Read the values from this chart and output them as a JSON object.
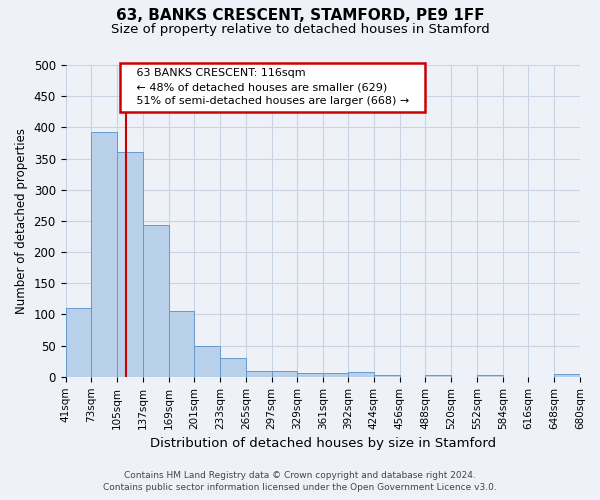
{
  "title_line1": "63, BANKS CRESCENT, STAMFORD, PE9 1FF",
  "title_line2": "Size of property relative to detached houses in Stamford",
  "xlabel": "Distribution of detached houses by size in Stamford",
  "ylabel": "Number of detached properties",
  "footer_line1": "Contains HM Land Registry data © Crown copyright and database right 2024.",
  "footer_line2": "Contains public sector information licensed under the Open Government Licence v3.0.",
  "annotation_line1": "63 BANKS CRESCENT: 116sqm",
  "annotation_line2": "← 48% of detached houses are smaller (629)",
  "annotation_line3": "51% of semi-detached houses are larger (668) →",
  "bar_edges": [
    41,
    73,
    105,
    137,
    169,
    201,
    233,
    265,
    297,
    329,
    361,
    392,
    424,
    456,
    488,
    520,
    552,
    584,
    616,
    648,
    680
  ],
  "bar_heights": [
    110,
    393,
    360,
    243,
    105,
    50,
    30,
    10,
    10,
    6,
    6,
    7,
    3,
    0,
    3,
    0,
    3,
    0,
    0,
    4
  ],
  "bar_color": "#b8d0ea",
  "bar_edge_color": "#6699cc",
  "property_size": 116,
  "vline_color": "#cc0000",
  "grid_color": "#c8d4e4",
  "annotation_box_color": "#cc0000",
  "ylim": [
    0,
    500
  ],
  "background_color": "#eef2f8",
  "ax_background_color": "#eef2f8"
}
